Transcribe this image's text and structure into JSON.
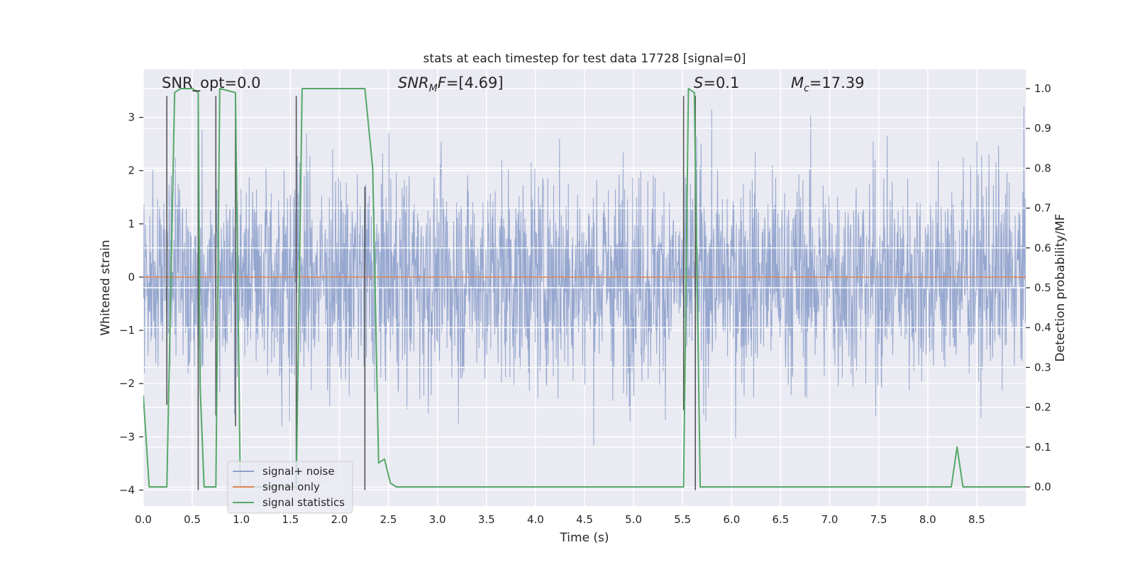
{
  "chart_data": {
    "type": "line",
    "title": "stats at each timestep for test data 17728 [signal=0]",
    "xlabel": "Time (s)",
    "ylabel": "Whitened strain",
    "y2label": "Detection probability/MF",
    "xlim": [
      0.0,
      9.0
    ],
    "ylim": [
      -4.3,
      3.9
    ],
    "y2lim": [
      -0.048,
      1.048
    ],
    "xticks": [
      "0.0",
      "0.5",
      "1.0",
      "1.5",
      "2.0",
      "2.5",
      "3.0",
      "3.5",
      "4.0",
      "4.5",
      "5.0",
      "5.5",
      "6.0",
      "6.5",
      "7.0",
      "7.5",
      "8.0",
      "8.5"
    ],
    "yticks": [
      "3",
      "2",
      "1",
      "0",
      "−1",
      "−2",
      "−3",
      "−4"
    ],
    "y2ticks": [
      "1.0",
      "0.9",
      "0.8",
      "0.7",
      "0.6",
      "0.5",
      "0.4",
      "0.3",
      "0.2",
      "0.1",
      "0.0"
    ],
    "grid": true,
    "legend": {
      "placement": "lower-left",
      "entries": [
        "signal+ noise",
        "signal only",
        "signal statistics"
      ]
    },
    "annotations": {
      "snr_opt": "SNR_opt=0.0",
      "snr_mf_base": "SNR",
      "snr_mf_sub": "M",
      "snr_mf_rest": "F=[4.69]",
      "s_base": "S",
      "s_rest": "=0.1",
      "mc_base": "M",
      "mc_sub": "c",
      "mc_rest": "=17.39"
    },
    "series": [
      {
        "name": "signal+ noise",
        "color": "#8da0cb",
        "style": "dense-noise",
        "x_range": [
          0.0,
          9.0
        ],
        "typical_amplitude": [
          -1.8,
          1.8
        ],
        "peak_amplitude": [
          -3.7,
          3.3
        ]
      },
      {
        "name": "signal only",
        "color": "#dd8452",
        "x": [
          0.0,
          9.0
        ],
        "y": [
          0.0,
          0.0
        ]
      },
      {
        "name": "signal statistics",
        "color": "#55a868",
        "axis": "right",
        "x": [
          0.0,
          0.06,
          0.24,
          0.32,
          0.38,
          0.5,
          0.56,
          0.58,
          0.62,
          0.74,
          0.78,
          0.94,
          0.99,
          1.5,
          1.56,
          1.62,
          2.26,
          2.34,
          2.4,
          2.46,
          2.52,
          2.58,
          5.48,
          5.51,
          5.56,
          5.62,
          5.68,
          8.24,
          8.3,
          8.36,
          9.0
        ],
        "y": [
          0.23,
          0.0,
          0.0,
          0.99,
          1.0,
          1.0,
          0.99,
          0.25,
          0.0,
          0.0,
          1.0,
          0.99,
          0.0,
          0.0,
          0.0,
          1.0,
          1.0,
          0.8,
          0.06,
          0.07,
          0.01,
          0.0,
          0.0,
          0.0,
          1.0,
          0.99,
          0.0,
          0.0,
          0.1,
          0.0,
          0.0
        ]
      }
    ],
    "vertical_markers": {
      "color": "#555555",
      "x": [
        0.24,
        0.56,
        0.74,
        0.94,
        1.56,
        2.26,
        5.51,
        5.63
      ],
      "top": [
        3.4,
        3.4,
        3.4,
        3.4,
        3.4,
        1.7,
        3.4,
        3.4
      ],
      "bottom": [
        -2.4,
        -4.0,
        -2.6,
        -2.8,
        -4.0,
        -4.0,
        -2.5,
        -4.0
      ]
    }
  }
}
